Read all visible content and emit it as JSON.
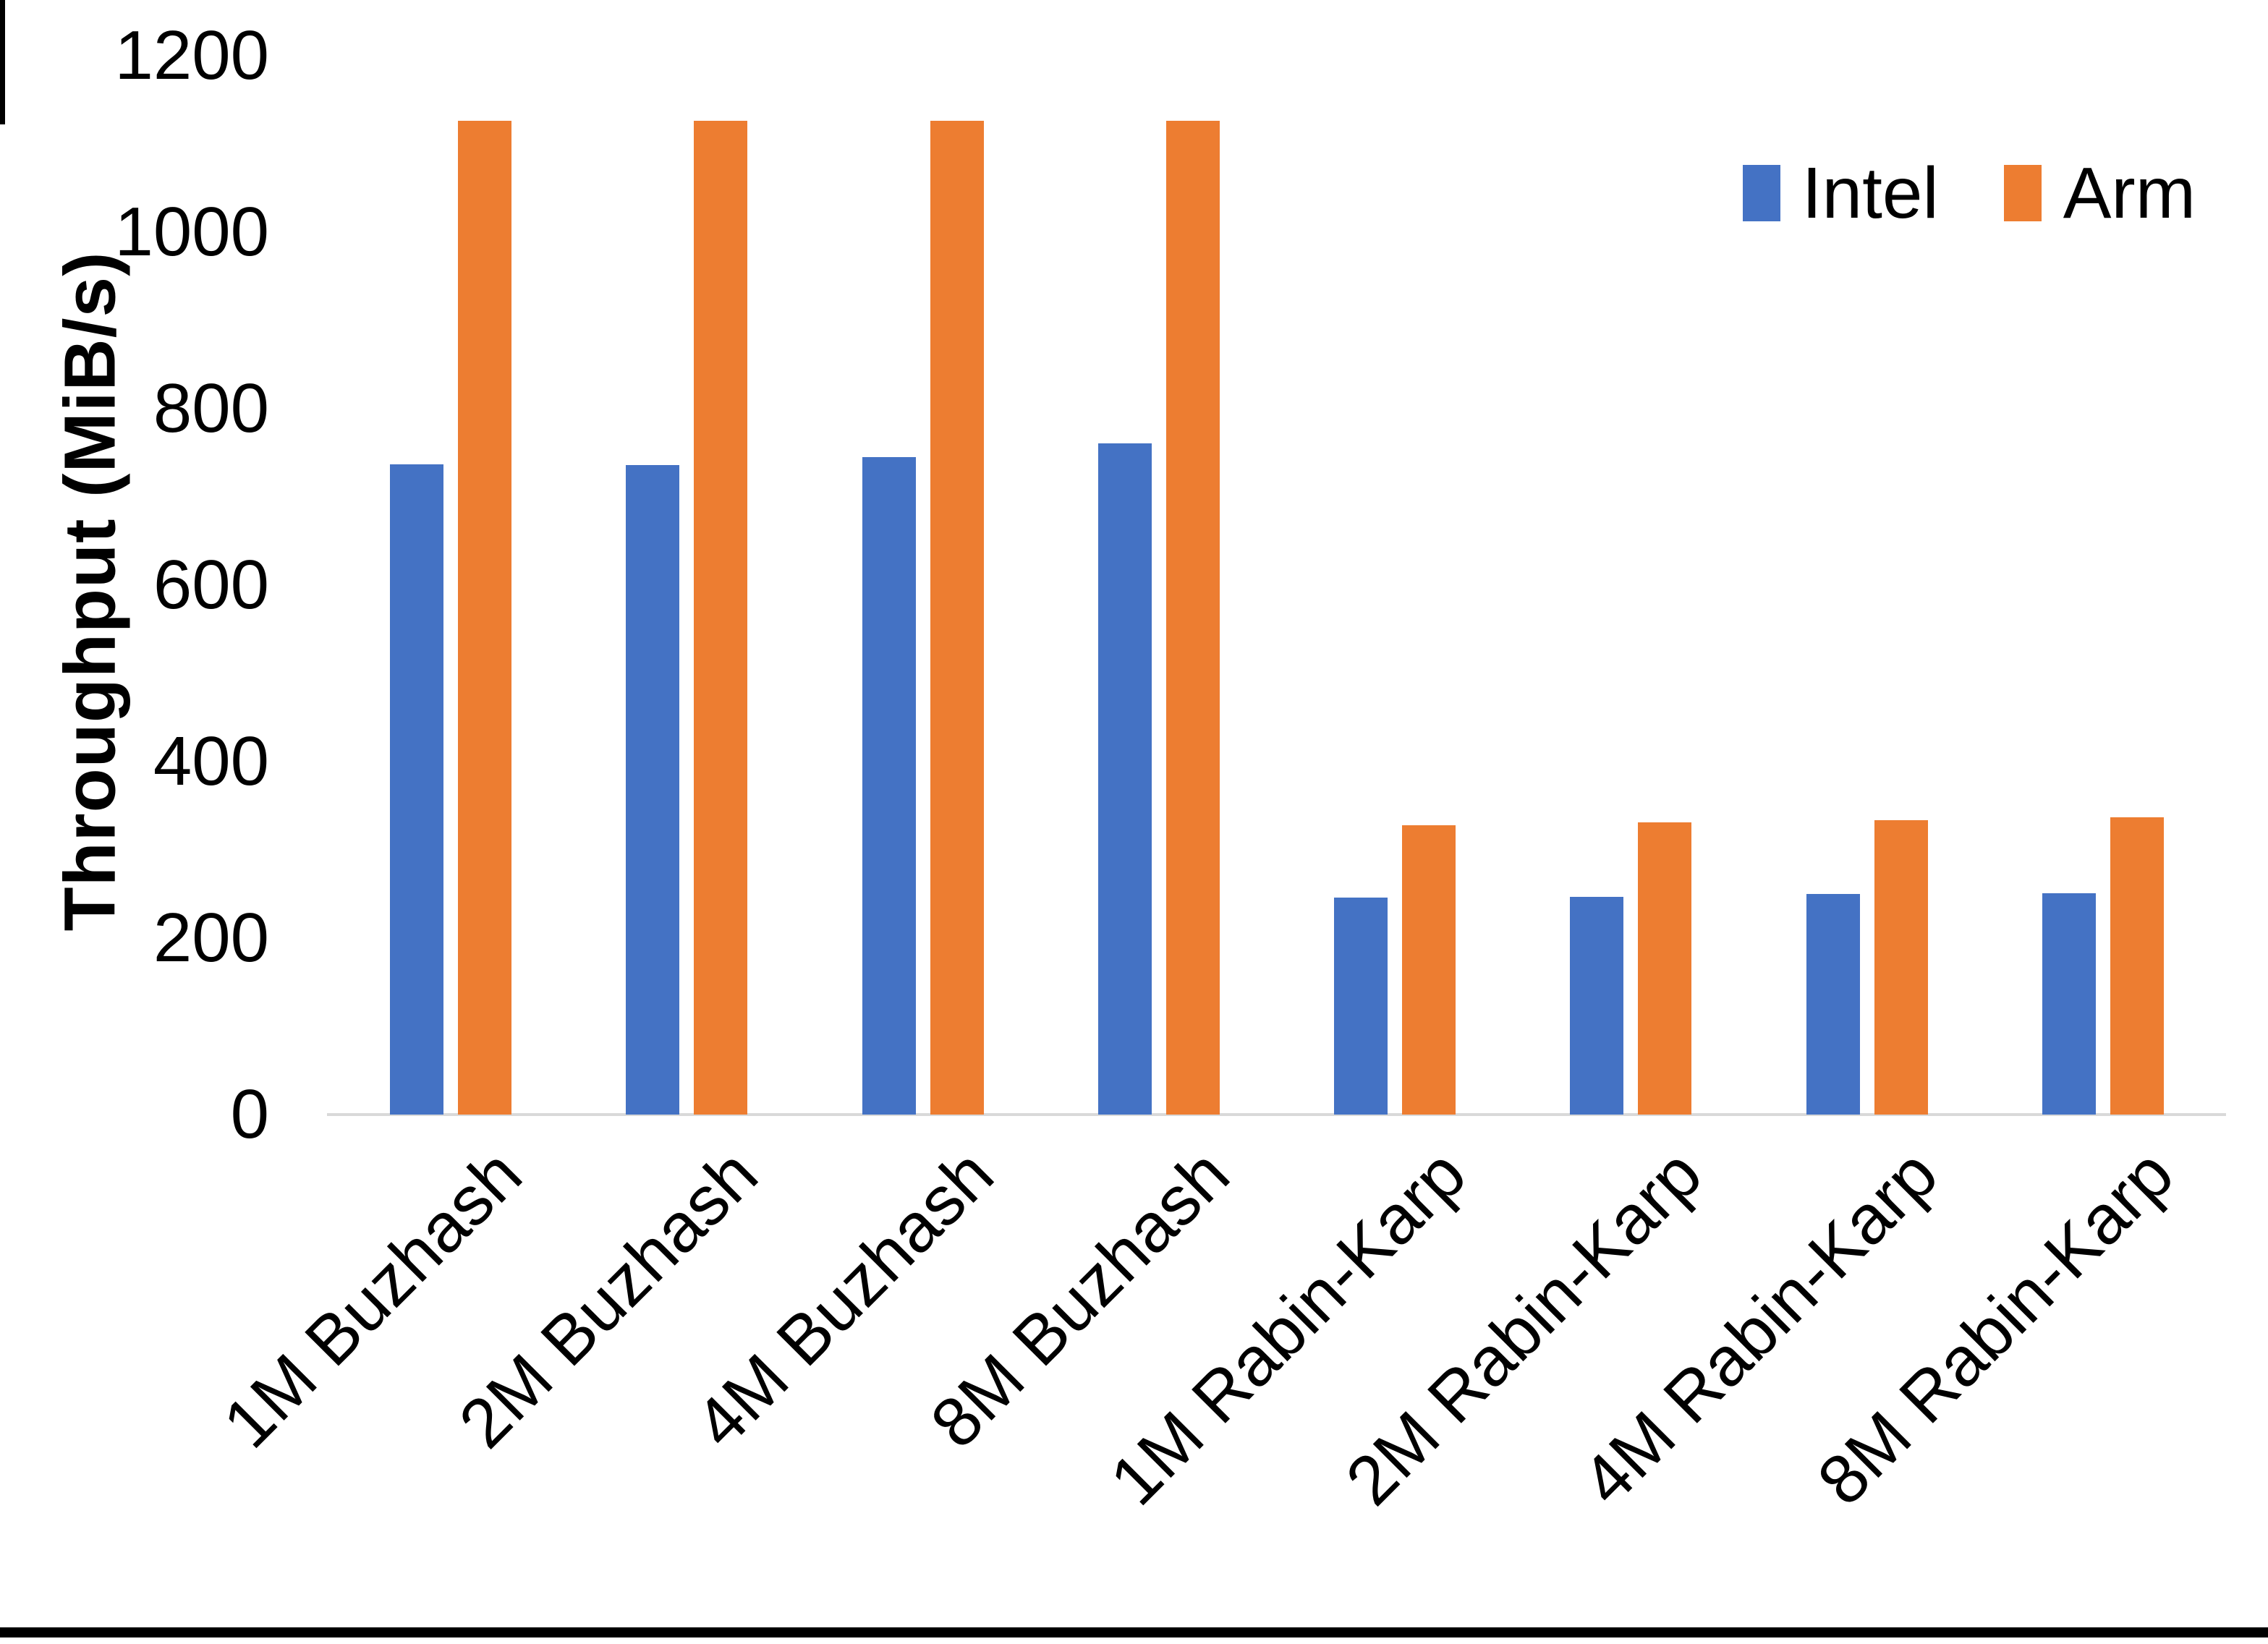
{
  "chart_data": {
    "type": "bar",
    "title": "",
    "xlabel": "",
    "ylabel": "Throughput (MiB/s)",
    "ylim": [
      0,
      1200
    ],
    "yticks": [
      0,
      200,
      400,
      600,
      800,
      1000,
      1200
    ],
    "grid": false,
    "legend_position": "top-right",
    "categories": [
      "1M Buzhash",
      "2M Buzhash",
      "4M Buzhash",
      "8M Buzhash",
      "1M Rabin-Karp",
      "2M Rabin-Karp",
      "4M Rabin-Karp",
      "8M Rabin-Karp"
    ],
    "series": [
      {
        "name": "Intel",
        "color": "#4472C4",
        "values": [
          737,
          736,
          745,
          761,
          246,
          247,
          250,
          251
        ]
      },
      {
        "name": "Arm",
        "color": "#ED7D31",
        "values": [
          1126,
          1126,
          1126,
          1126,
          328,
          331,
          334,
          337
        ]
      }
    ],
    "axis_line_color": "#D9D9D9",
    "text_color": "#000000",
    "background_color": "#FFFFFF"
  }
}
